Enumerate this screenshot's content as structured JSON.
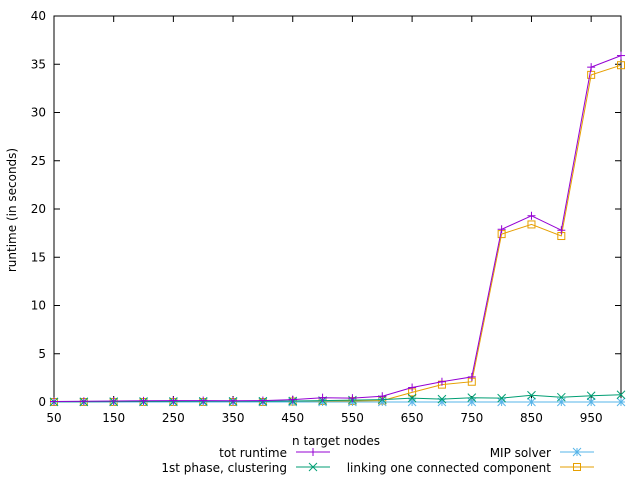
{
  "chart_data": {
    "type": "line",
    "xlabel": "n target nodes",
    "ylabel": "runtime (in seconds)",
    "xlim": [
      50,
      1000
    ],
    "ylim": [
      0,
      40
    ],
    "xticks": [
      50,
      150,
      250,
      350,
      450,
      550,
      650,
      750,
      850,
      950
    ],
    "yticks": [
      0,
      5,
      10,
      15,
      20,
      25,
      30,
      35,
      40
    ],
    "xtick_labels": [
      "50",
      "150",
      "250",
      "350",
      "450",
      "550",
      "650",
      "750",
      "850",
      "950"
    ],
    "ytick_labels": [
      "0",
      "5",
      "10",
      "15",
      "20",
      "25",
      "30",
      "35",
      "40"
    ],
    "grid": false,
    "legend_position": "bottom",
    "x": [
      50,
      100,
      150,
      200,
      250,
      300,
      350,
      400,
      450,
      500,
      550,
      600,
      650,
      700,
      750,
      800,
      850,
      900,
      950,
      1000
    ],
    "series": [
      {
        "name": "tot runtime",
        "color": "#9400d3",
        "marker": "plus",
        "values": [
          0.05,
          0.08,
          0.1,
          0.12,
          0.15,
          0.15,
          0.12,
          0.15,
          0.25,
          0.45,
          0.4,
          0.6,
          1.5,
          2.1,
          2.6,
          17.9,
          19.3,
          17.8,
          34.7,
          35.9
        ]
      },
      {
        "name": "1st phase, clustering",
        "color": "#009e73",
        "marker": "x",
        "values": [
          0.02,
          0.03,
          0.04,
          0.05,
          0.06,
          0.07,
          0.07,
          0.08,
          0.1,
          0.15,
          0.2,
          0.25,
          0.4,
          0.3,
          0.45,
          0.4,
          0.7,
          0.5,
          0.65,
          0.75
        ]
      },
      {
        "name": "MIP solver",
        "color": "#56b4e9",
        "marker": "star",
        "values": [
          0.0,
          0.0,
          0.0,
          0.0,
          0.0,
          0.0,
          0.0,
          0.0,
          0.0,
          0.0,
          0.0,
          0.0,
          0.0,
          0.0,
          0.0,
          0.0,
          0.0,
          0.0,
          0.0,
          0.0
        ]
      },
      {
        "name": "linking one connected component",
        "color": "#e69f00",
        "marker": "square",
        "values": [
          0.0,
          0.0,
          0.0,
          0.0,
          0.0,
          0.0,
          0.0,
          0.0,
          0.05,
          0.1,
          0.1,
          0.15,
          1.0,
          1.8,
          2.1,
          17.4,
          18.4,
          17.2,
          33.9,
          34.9
        ]
      }
    ]
  }
}
